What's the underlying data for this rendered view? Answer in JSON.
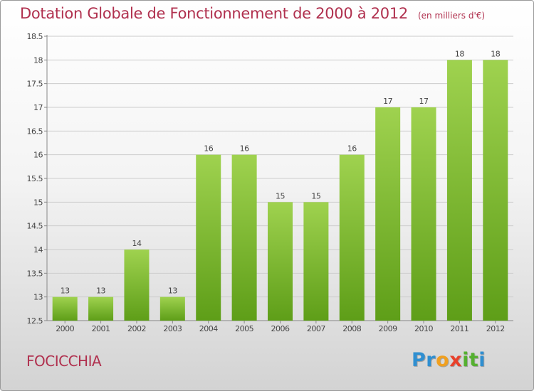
{
  "header": {
    "title": "Dotation Globale de Fonctionnement de 2000 à 2012",
    "subtitle": "(en milliers d'€)"
  },
  "footer": {
    "commune": "FOCICCHIA",
    "brand_letters": [
      {
        "char": "P",
        "color": "#2f8fd1"
      },
      {
        "char": "r",
        "color": "#2f8fd1"
      },
      {
        "char": "o",
        "color": "#f0a020"
      },
      {
        "char": "x",
        "color": "#e8402a"
      },
      {
        "char": "i",
        "color": "#55b030"
      },
      {
        "char": "t",
        "color": "#55b030"
      },
      {
        "char": "i",
        "color": "#2f8fd1"
      }
    ]
  },
  "colors": {
    "title": "#b0304e",
    "bar_light": "#9fd24f",
    "bar_dark": "#5e9e18",
    "grid": "#cccccc"
  },
  "chart_data": {
    "type": "bar",
    "categories": [
      "2000",
      "2001",
      "2002",
      "2003",
      "2004",
      "2005",
      "2006",
      "2007",
      "2008",
      "2009",
      "2010",
      "2011",
      "2012"
    ],
    "values": [
      13,
      13,
      14,
      13,
      16,
      16,
      15,
      15,
      16,
      17,
      17,
      18,
      18
    ],
    "value_labels": [
      "13",
      "13",
      "14",
      "13",
      "16",
      "16",
      "15",
      "15",
      "16",
      "17",
      "17",
      "18",
      "18"
    ],
    "y_ticks": [
      "12.5",
      "13",
      "13.5",
      "14",
      "14.5",
      "15",
      "15.5",
      "16",
      "16.5",
      "17",
      "17.5",
      "18",
      "18.5"
    ],
    "ylim": [
      12.5,
      18.5
    ],
    "grid": true
  }
}
